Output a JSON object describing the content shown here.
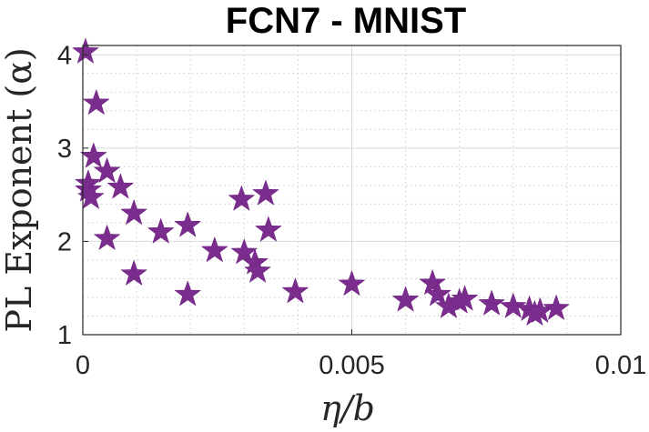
{
  "chart_data": {
    "type": "scatter",
    "title": "FCN7 - MNIST",
    "xlabel_main": "η/b",
    "ylabel_main": "PL Exponent (α)",
    "xlim": [
      0,
      0.01
    ],
    "ylim": [
      1,
      4.1
    ],
    "x_ticks": [
      0,
      0.005,
      0.01
    ],
    "x_tick_labels": [
      "0",
      "0.005",
      "0.01"
    ],
    "y_ticks": [
      1,
      2,
      3,
      4
    ],
    "y_tick_labels": [
      "1",
      "2",
      "3",
      "4"
    ],
    "grid": true,
    "minor_grid": true,
    "marker": "star",
    "color": "#7B2D8E",
    "points": [
      {
        "x": 5e-05,
        "y": 4.03
      },
      {
        "x": 0.0001,
        "y": 2.62
      },
      {
        "x": 0.0001,
        "y": 2.55
      },
      {
        "x": 0.00015,
        "y": 2.47
      },
      {
        "x": 0.0002,
        "y": 2.91
      },
      {
        "x": 0.00025,
        "y": 3.48
      },
      {
        "x": 0.00045,
        "y": 2.75
      },
      {
        "x": 0.00045,
        "y": 2.03
      },
      {
        "x": 0.0007,
        "y": 2.58
      },
      {
        "x": 0.00095,
        "y": 2.3
      },
      {
        "x": 0.00095,
        "y": 1.65
      },
      {
        "x": 0.00145,
        "y": 2.1
      },
      {
        "x": 0.00195,
        "y": 2.17
      },
      {
        "x": 0.00195,
        "y": 1.43
      },
      {
        "x": 0.00245,
        "y": 1.9
      },
      {
        "x": 0.00295,
        "y": 2.45
      },
      {
        "x": 0.003,
        "y": 1.88
      },
      {
        "x": 0.0032,
        "y": 1.77
      },
      {
        "x": 0.00325,
        "y": 1.68
      },
      {
        "x": 0.0034,
        "y": 2.51
      },
      {
        "x": 0.00345,
        "y": 2.12
      },
      {
        "x": 0.00395,
        "y": 1.46
      },
      {
        "x": 0.005,
        "y": 1.54
      },
      {
        "x": 0.006,
        "y": 1.37
      },
      {
        "x": 0.0065,
        "y": 1.55
      },
      {
        "x": 0.0066,
        "y": 1.43
      },
      {
        "x": 0.0068,
        "y": 1.3
      },
      {
        "x": 0.007,
        "y": 1.35
      },
      {
        "x": 0.0071,
        "y": 1.38
      },
      {
        "x": 0.0076,
        "y": 1.33
      },
      {
        "x": 0.008,
        "y": 1.3
      },
      {
        "x": 0.0083,
        "y": 1.27
      },
      {
        "x": 0.0084,
        "y": 1.22
      },
      {
        "x": 0.0085,
        "y": 1.25
      },
      {
        "x": 0.0088,
        "y": 1.28
      }
    ]
  }
}
